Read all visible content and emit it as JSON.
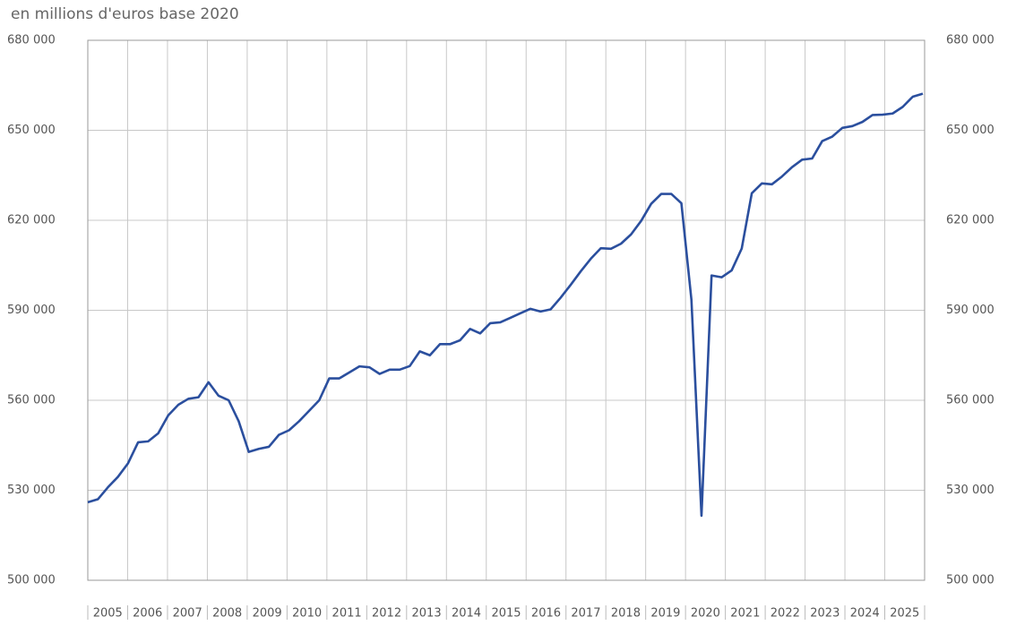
{
  "chart_data": {
    "type": "line",
    "title": "en millions d'euros base 2020",
    "categories": [
      "2005",
      null,
      null,
      null,
      "2006",
      null,
      null,
      null,
      "2007",
      null,
      null,
      null,
      "2008",
      null,
      null,
      null,
      "2009",
      null,
      null,
      null,
      "2010",
      null,
      null,
      null,
      "2011",
      null,
      null,
      null,
      "2012",
      null,
      null,
      null,
      "2013",
      null,
      null,
      null,
      "2014",
      null,
      null,
      null,
      "2015",
      null,
      null,
      null,
      "2016",
      null,
      null,
      null,
      "2017",
      null,
      null,
      null,
      "2018",
      null,
      null,
      null,
      "2019",
      null,
      null,
      null,
      "2020",
      null,
      null,
      null,
      "2021",
      null,
      null,
      null,
      "2022",
      null,
      null,
      null,
      "2023",
      null,
      null,
      null,
      "2024",
      null,
      null,
      null,
      "2025",
      null,
      null,
      null
    ],
    "series": [
      {
        "color": "#2b4f9e",
        "values": [
          526000,
          527000,
          531000,
          534500,
          539000,
          546000,
          546300,
          549000,
          555000,
          558500,
          560500,
          561000,
          566000,
          561500,
          560000,
          553000,
          542800,
          543800,
          544500,
          548500,
          550000,
          553000,
          556500,
          560000,
          567300,
          567300,
          569300,
          571300,
          571000,
          568800,
          570200,
          570200,
          571400,
          576300,
          575000,
          578700,
          578700,
          580000,
          583800,
          582300,
          585700,
          586000,
          587500,
          589000,
          590500,
          589600,
          590300,
          594200,
          598500,
          603000,
          607200,
          610700,
          610500,
          612200,
          615300,
          619800,
          625500,
          628800,
          628800,
          625700,
          593500,
          521500,
          601600,
          601000,
          603300,
          610600,
          629000,
          632300,
          632000,
          634600,
          637700,
          640200,
          640600,
          646400,
          647900,
          650800,
          651400,
          652800,
          655100,
          655200,
          655600,
          657800,
          661200,
          662200
        ]
      }
    ],
    "ylim": [
      500000,
      680000
    ],
    "yticks": [
      {
        "value": 500000,
        "label": "500 000"
      },
      {
        "value": 530000,
        "label": "530 000"
      },
      {
        "value": 560000,
        "label": "560 000"
      },
      {
        "value": 590000,
        "label": "590 000"
      },
      {
        "value": 620000,
        "label": "620 000"
      },
      {
        "value": 650000,
        "label": "650 000"
      },
      {
        "value": 680000,
        "label": "680 000"
      }
    ],
    "grid": true
  }
}
